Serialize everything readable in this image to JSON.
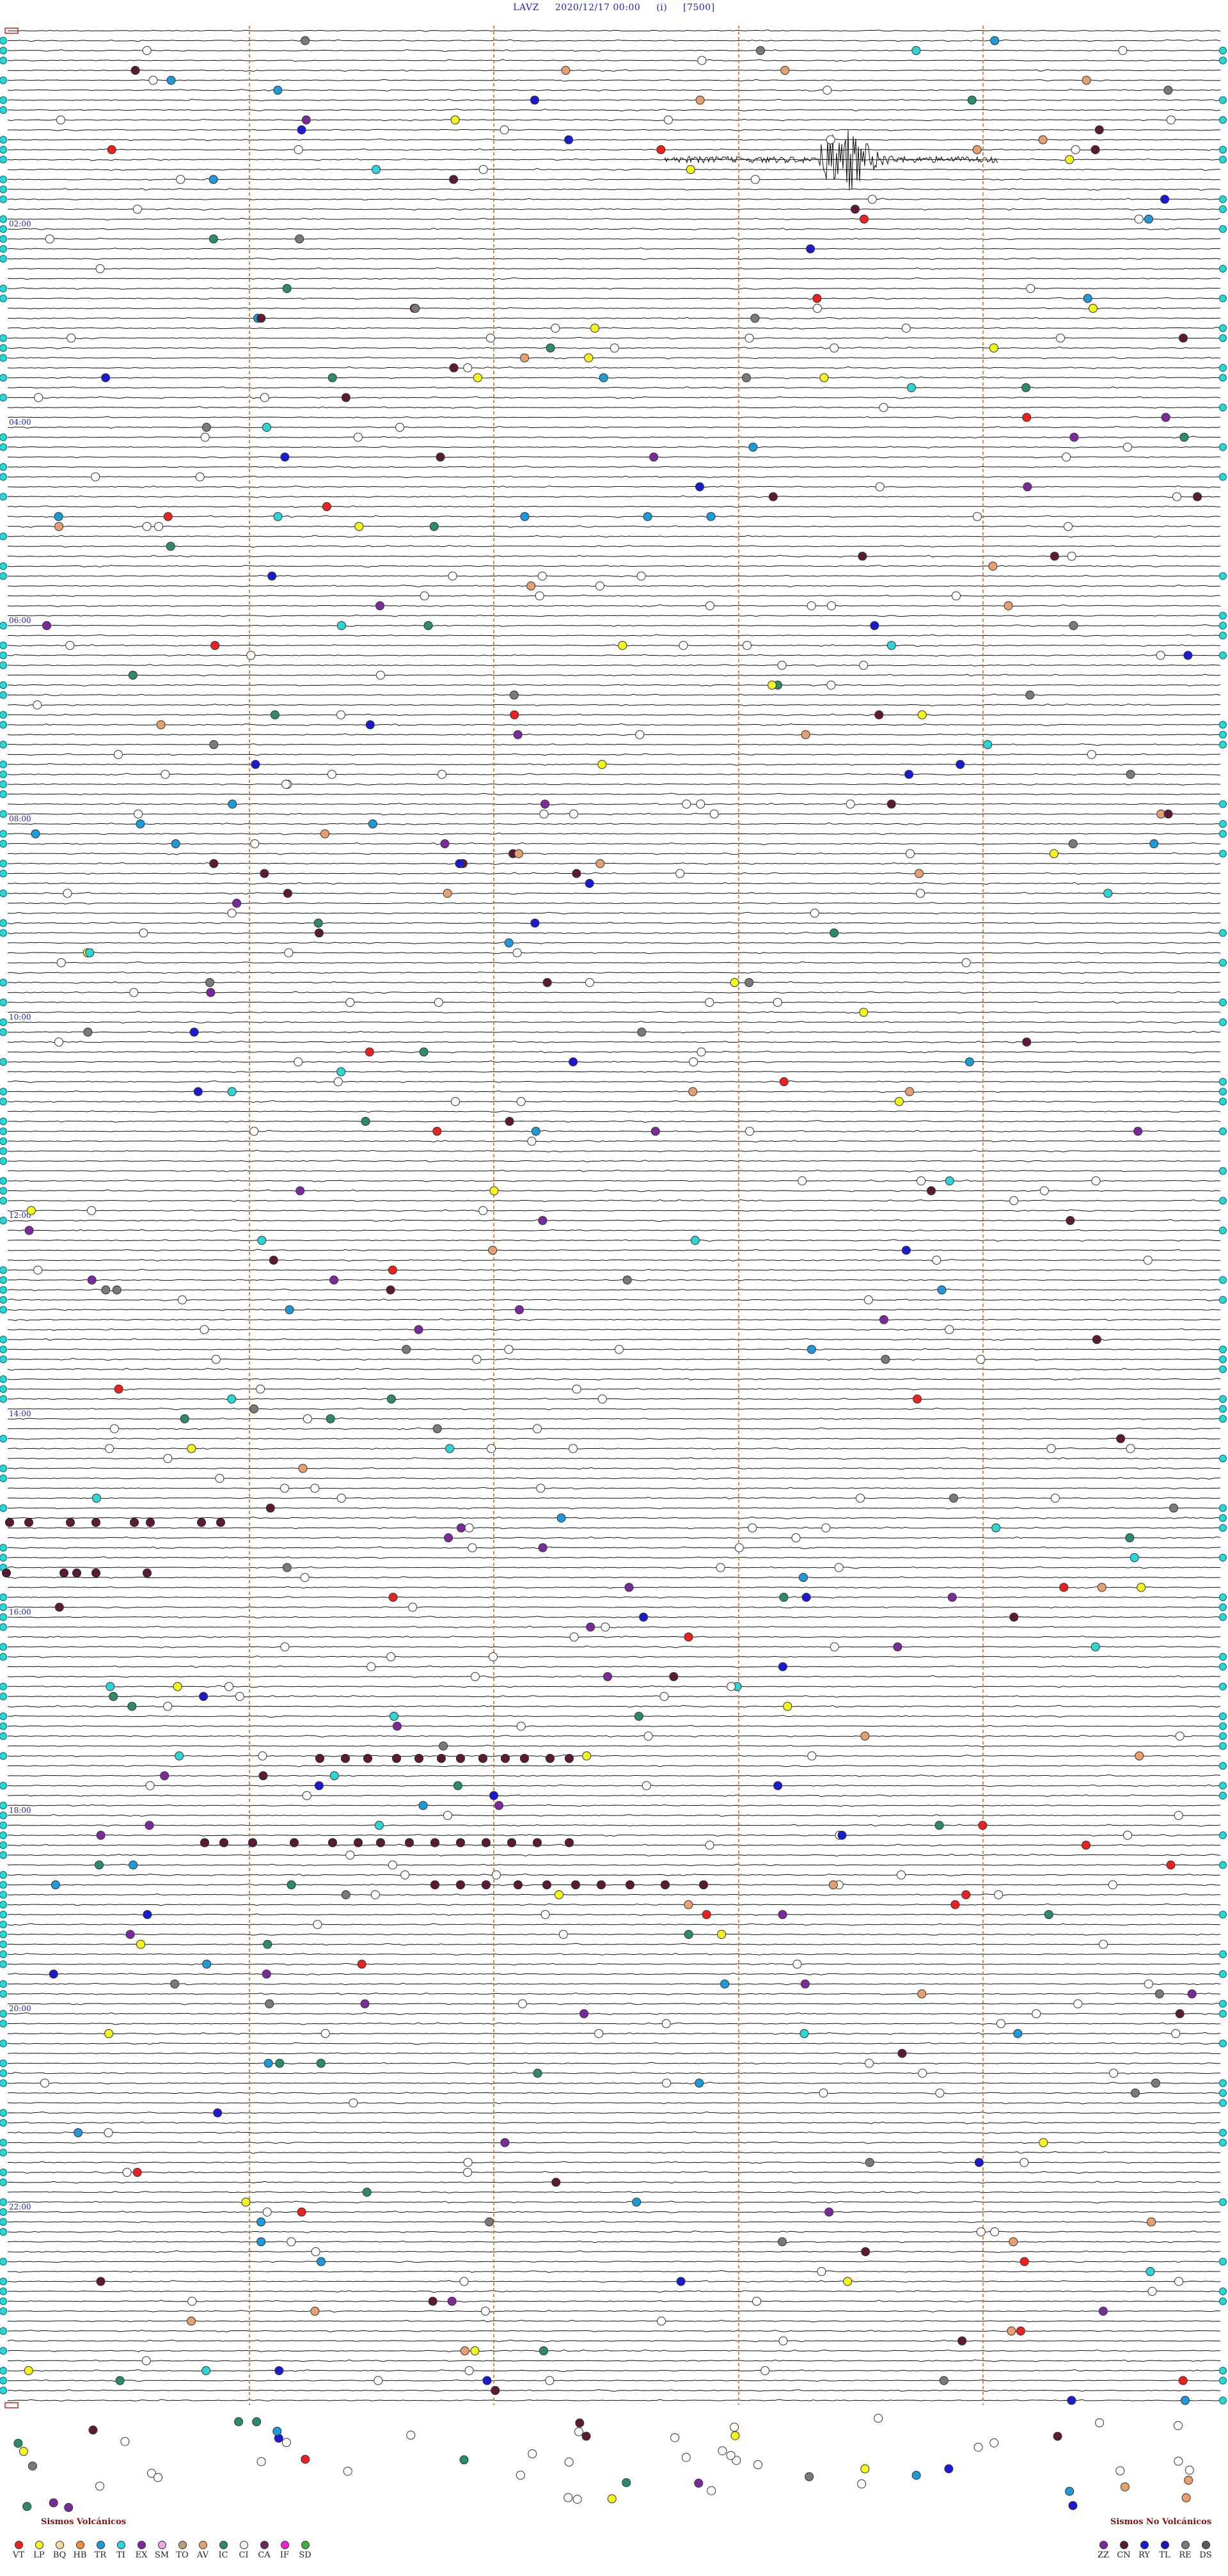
{
  "header": {
    "station": "LAVZ",
    "datetime": "2020/12/17 00:00",
    "mode": "(i)",
    "scale": "[7500]"
  },
  "time_labels": [
    "02:00",
    "04:00",
    "06:00",
    "08:00",
    "10:00",
    "12:00",
    "14:00",
    "16:00",
    "18:00",
    "20:00",
    "22:00"
  ],
  "legend_volcanic": {
    "title": "Sismos Volcánicos",
    "items": [
      {
        "code": "VT",
        "color": "#e8231f"
      },
      {
        "code": "LP",
        "color": "#f5f51e"
      },
      {
        "code": "BQ",
        "color": "#f7d9a0"
      },
      {
        "code": "HB",
        "color": "#f08a3c"
      },
      {
        "code": "TR",
        "color": "#1e9ad8"
      },
      {
        "code": "TI",
        "color": "#2cd6d6"
      },
      {
        "code": "EX",
        "color": "#7b2a9c"
      },
      {
        "code": "SM",
        "color": "#e7a8e8"
      },
      {
        "code": "TO",
        "color": "#b9a07a"
      },
      {
        "code": "AV",
        "color": "#e6a070"
      },
      {
        "code": "IC",
        "color": "#2d8a6e"
      },
      {
        "code": "CI",
        "color": "#f0f0f0"
      },
      {
        "code": "CA",
        "color": "#6a2a58"
      },
      {
        "code": "IF",
        "color": "#f020d8"
      },
      {
        "code": "SD",
        "color": "#40b040"
      }
    ]
  },
  "legend_nonvolcanic": {
    "title": "Sismos No Volcánicos",
    "items": [
      {
        "code": "ZZ",
        "color": "#7b2a9c"
      },
      {
        "code": "CN",
        "color": "#5a1a38"
      },
      {
        "code": "RY",
        "color": "#1a1ad0"
      },
      {
        "code": "TL",
        "color": "#1616b8"
      },
      {
        "code": "RE",
        "color": "#7a7a7a"
      },
      {
        "code": "DS",
        "color": "#5a5a5a"
      }
    ]
  },
  "colors": {
    "header": "#1a22c8",
    "trace": "#111111",
    "guide": "#e07030",
    "time_label": "#1a22c8",
    "left_marker": "#2cd6d6"
  }
}
